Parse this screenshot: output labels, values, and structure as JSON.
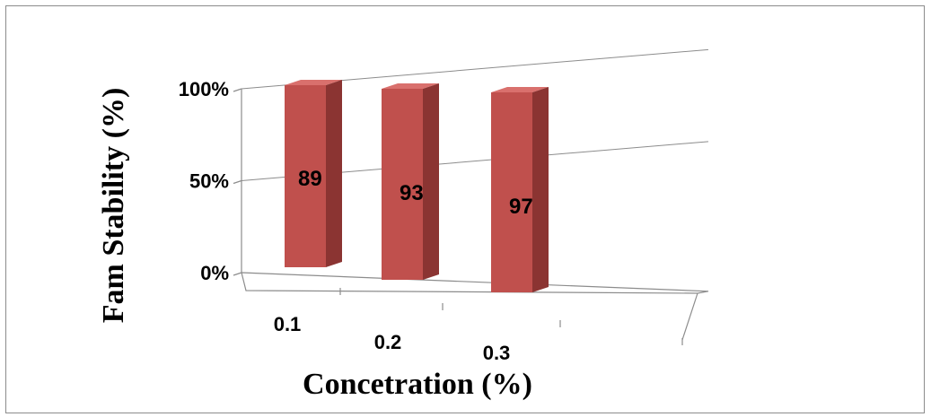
{
  "chart_data": {
    "type": "bar",
    "categories": [
      "0.1",
      "0.2",
      "0.3"
    ],
    "values": [
      89,
      93,
      97
    ],
    "data_labels": [
      "89",
      "93",
      "97"
    ],
    "xlabel": "Concetration (%)",
    "ylabel": "Fam Stability (%)",
    "y_ticks": [
      "0%",
      "50%",
      "100%"
    ],
    "ylim": [
      0,
      100
    ],
    "grid": true,
    "legend": "none",
    "style": "3d-column",
    "colors": {
      "front": "#C0504D",
      "side": "#8B3432",
      "top": "#D9706D",
      "axis": "#8C8C8C"
    }
  }
}
